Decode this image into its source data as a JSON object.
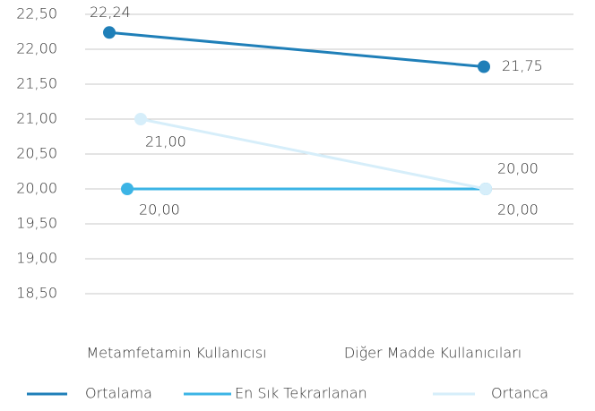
{
  "chart_data": {
    "type": "line",
    "categories": [
      "Metamfetamin Kullanıcısı",
      "Diğer Madde Kullanıcıları"
    ],
    "series": [
      {
        "name": "Ortalama",
        "color": "#1f7fb8",
        "values": [
          22.24,
          21.75
        ],
        "value_labels": [
          "22,24",
          "21,75"
        ]
      },
      {
        "name": "En Sık Tekrarlanan",
        "color": "#3cb4e5",
        "values": [
          20,
          20
        ],
        "value_labels": [
          "20,00",
          "20,00"
        ]
      },
      {
        "name": "Ortanca",
        "color": "#d6eefa",
        "values": [
          21,
          20
        ],
        "value_labels": [
          "21,00",
          "20,00"
        ]
      }
    ],
    "ylim": [
      18.5,
      22.5
    ],
    "yticks": [
      {
        "value": 18.5,
        "label": "18,50"
      },
      {
        "value": 19,
        "label": "19,00"
      },
      {
        "value": 19.5,
        "label": "19,50"
      },
      {
        "value": 20,
        "label": "20,00"
      },
      {
        "value": 20.5,
        "label": "20,50"
      },
      {
        "value": 21,
        "label": "21,00"
      },
      {
        "value": 21.5,
        "label": "21,50"
      },
      {
        "value": 22,
        "label": "22,00"
      },
      {
        "value": 22.5,
        "label": "22,50"
      }
    ],
    "grid": true,
    "legend": "bottom"
  }
}
